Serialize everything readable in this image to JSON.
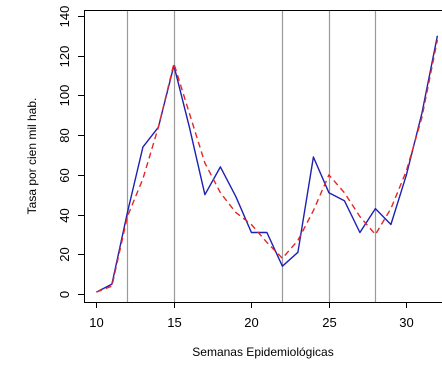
{
  "chart_data": {
    "type": "line",
    "xlabel": "Semanas Epidemiológicas",
    "ylabel": "Tasa por cien mil hab.",
    "xlim": [
      9.2,
      32.3
    ],
    "ylim": [
      -4,
      143
    ],
    "x_ticks": [
      10,
      15,
      20,
      25,
      30
    ],
    "y_ticks": [
      0,
      20,
      40,
      60,
      80,
      100,
      120,
      140
    ],
    "vertical_lines": [
      12,
      15,
      22,
      25,
      28
    ],
    "grid": false,
    "series": [
      {
        "style": "solid",
        "color": "#1f1fb4",
        "x": [
          10,
          11,
          12,
          13,
          14,
          15,
          16,
          17,
          18,
          19,
          20,
          21,
          22,
          23,
          24,
          25,
          26,
          27,
          28,
          29,
          30,
          31,
          32
        ],
        "y": [
          1,
          5,
          41,
          74,
          84,
          115,
          84,
          50,
          64,
          49,
          31,
          31,
          14,
          21,
          69,
          51,
          47,
          31,
          43,
          35,
          60,
          91,
          130
        ]
      },
      {
        "style": "dashed",
        "color": "#e32626",
        "x": [
          10,
          11,
          12,
          13,
          14,
          15,
          16,
          17,
          18,
          19,
          20,
          21,
          22,
          23,
          24,
          25,
          26,
          27,
          28,
          29,
          30,
          31,
          32
        ],
        "y": [
          1,
          4,
          39,
          58,
          84,
          116,
          91,
          66,
          51,
          41,
          35,
          26,
          18,
          27,
          42,
          60,
          51,
          39,
          30,
          43,
          62,
          89,
          128
        ]
      }
    ]
  }
}
